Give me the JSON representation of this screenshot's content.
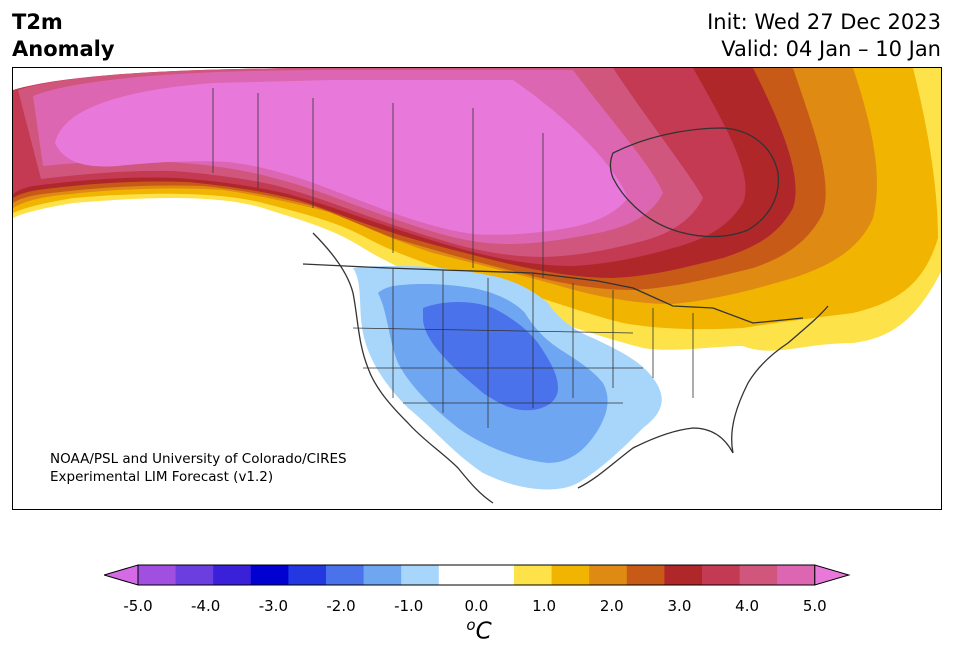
{
  "title": {
    "line1": "T2m",
    "line2": "Anomaly"
  },
  "dates": {
    "init": "Init: Wed 27 Dec 2023",
    "valid": "Valid: 04 Jan – 10 Jan"
  },
  "credit": {
    "line1": "NOAA/PSL and University of Colorado/CIRES",
    "line2": "Experimental LIM Forecast (v1.2)"
  },
  "colorbar": {
    "ticks": [
      "-5.0",
      "-4.0",
      "-3.0",
      "-2.0",
      "-1.0",
      "0.0",
      "1.0",
      "2.0",
      "3.0",
      "4.0",
      "5.0"
    ],
    "unit_super": "o",
    "unit_base": "C",
    "colors": [
      "#a04fe0",
      "#6b3ee0",
      "#3a20d8",
      "#0000d0",
      "#2338e0",
      "#4a72ea",
      "#6fa6f2",
      "#a8d6fb",
      "#ffffff",
      "#ffffff",
      "#fde24a",
      "#f1b400",
      "#df8a12",
      "#c75a17",
      "#b0272a",
      "#c43a52",
      "#d0567e",
      "#dc66b2"
    ],
    "low_extend_color": "#d56ae6",
    "high_extend_color": "#e879da"
  },
  "map_colors": {
    "plus5": "#e879da",
    "plus45": "#dc66b2",
    "plus4": "#d0567e",
    "plus35": "#c43a52",
    "plus3": "#b0272a",
    "plus25": "#c75a17",
    "plus2": "#df8a12",
    "plus15": "#f1b400",
    "plus1": "#fde24a",
    "minus1": "#a8d6fb",
    "minus15": "#6fa6f2",
    "minus2": "#4a72ea",
    "border": "#333333"
  }
}
